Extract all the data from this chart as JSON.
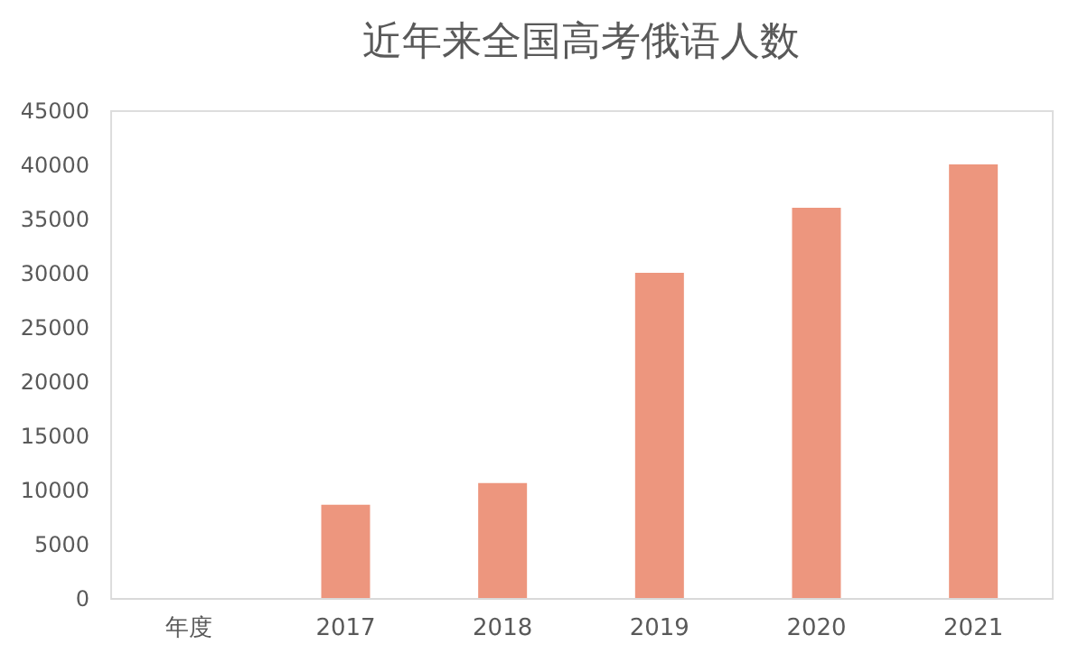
{
  "chart_data": {
    "type": "bar",
    "title": "近年来全国高考俄语人数",
    "categories": [
      "年度",
      "2017",
      "2018",
      "2019",
      "2020",
      "2021"
    ],
    "series": [
      {
        "color": "#ed967e",
        "values": [
          null,
          8600,
          10600,
          30000,
          36000,
          40000
        ]
      }
    ],
    "ylim": [
      0,
      45000
    ],
    "yticks": [
      0,
      5000,
      10000,
      15000,
      20000,
      25000,
      30000,
      35000,
      40000,
      45000
    ],
    "grid": false
  }
}
